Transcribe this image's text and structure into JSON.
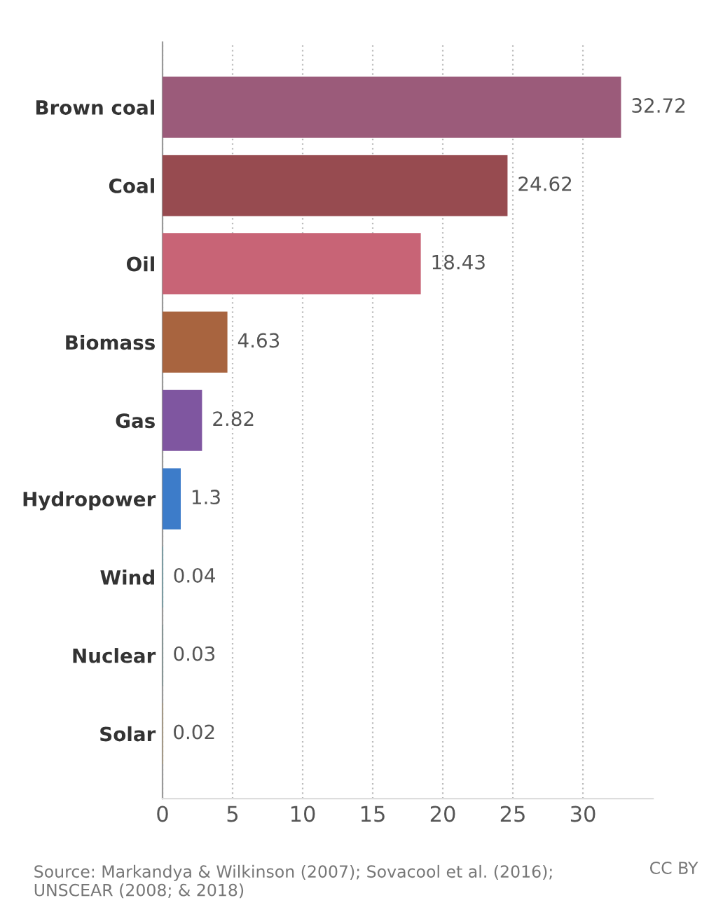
{
  "chart_data": {
    "type": "bar",
    "orientation": "horizontal",
    "categories": [
      "Brown coal",
      "Coal",
      "Oil",
      "Biomass",
      "Gas",
      "Hydropower",
      "Wind",
      "Nuclear",
      "Solar"
    ],
    "values": [
      32.72,
      24.62,
      18.43,
      4.63,
      2.82,
      1.3,
      0.04,
      0.03,
      0.02
    ],
    "colors": [
      "#9b5b7a",
      "#974b50",
      "#c86476",
      "#a8643f",
      "#7f56a0",
      "#3d7cc9",
      "#4a9fb0",
      "#5b8a8a",
      "#d09a3a"
    ],
    "data_labels": true,
    "xlim": [
      0,
      35
    ],
    "xticks": [
      0,
      5,
      10,
      15,
      20,
      25,
      30
    ],
    "grid": "x",
    "annotations": [
      "Source: Markandya & Wilkinson (2007); Sovacool et al. (2016); UNSCEAR (2008; & 2018)",
      "CC BY"
    ]
  }
}
